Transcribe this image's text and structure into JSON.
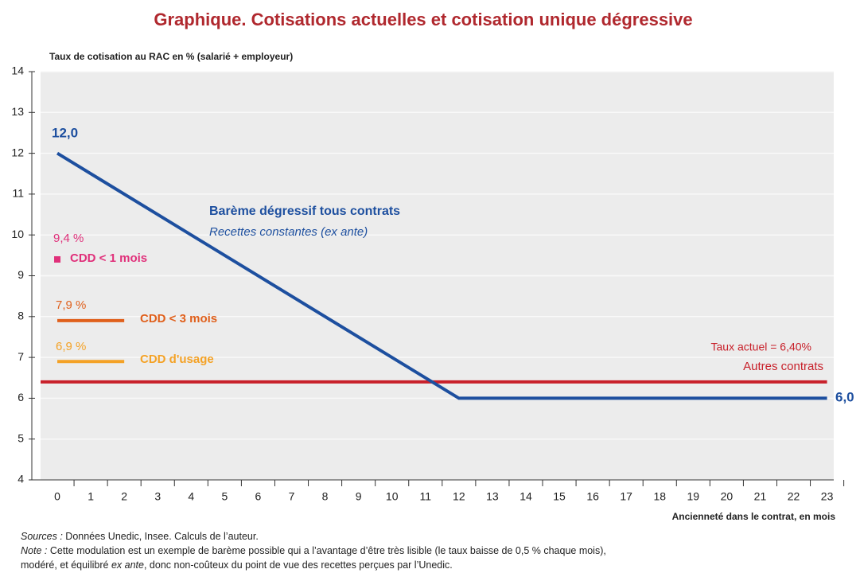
{
  "chart_data": {
    "type": "line",
    "title": "Graphique. Cotisations actuelles et cotisation unique dégressive",
    "y_label": "Taux de cotisation au RAC en % (salarié + employeur)",
    "x_label": "Ancienneté dans le contrat, en mois",
    "xlim": [
      -0.5,
      23.2
    ],
    "xticks": [
      0,
      1,
      2,
      3,
      4,
      5,
      6,
      7,
      8,
      9,
      10,
      11,
      12,
      13,
      14,
      15,
      16,
      17,
      18,
      19,
      20,
      21,
      22,
      23
    ],
    "ylim": [
      4,
      14
    ],
    "yticks": [
      4,
      5,
      6,
      7,
      8,
      9,
      10,
      11,
      12,
      13,
      14
    ],
    "grid": true,
    "series": [
      {
        "name": "Barème dégressif tous contrats",
        "subtitle": "Recettes constantes (ex ante)",
        "color": "#1d4f9f",
        "x": [
          0,
          12,
          23
        ],
        "values": [
          12,
          6,
          6
        ],
        "value_labels": [
          "12,0",
          null,
          "6,0"
        ]
      },
      {
        "name": "Autres contrats",
        "note": "Taux actuel = 6,40%",
        "color": "#c8202a",
        "x": [
          -0.5,
          23
        ],
        "values": [
          6.4,
          6.4
        ]
      },
      {
        "name": "CDD < 1 mois",
        "color": "#e0307a",
        "marker": "square",
        "x": [
          0
        ],
        "values": [
          9.4
        ],
        "value_labels": [
          "9,4 %"
        ]
      },
      {
        "name": "CDD < 3 mois",
        "color": "#e0601c",
        "x": [
          0,
          2
        ],
        "values": [
          7.9,
          7.9
        ],
        "value_labels": [
          "7,9 %",
          null
        ]
      },
      {
        "name": "CDD d'usage",
        "color": "#f4a226",
        "x": [
          0,
          2
        ],
        "values": [
          6.9,
          6.9
        ],
        "value_labels": [
          "6,9 %",
          null
        ]
      }
    ]
  },
  "footer": {
    "sources_label": "Sources :",
    "sources": "Données Unedic, Insee. Calculs de l’auteur.",
    "note_label": "Note :",
    "note_1": "Cette modulation est un exemple de barème possible qui a l’avantage d’être très lisible (le taux baisse de 0,5 % chaque mois),",
    "note_2a": "modéré, et équilibré",
    "note_2b": "ex ante",
    "note_2c": ", donc non-coûteux du point de vue des recettes perçues par l’Unedic."
  }
}
